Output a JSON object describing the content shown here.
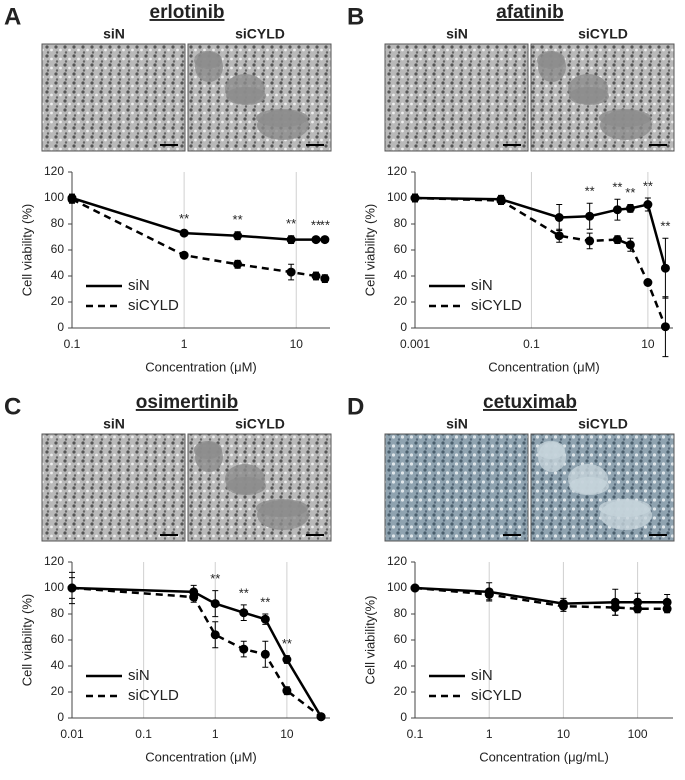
{
  "chart_data": [
    {
      "type": "line",
      "panel": "A",
      "title": "erlotinib",
      "image_labels": [
        "siN",
        "siCYLD"
      ],
      "xscale": "log",
      "grid": "x",
      "legend": "lower left",
      "x_label": "Concentration (μM)",
      "y_label": "Cell viability (%)",
      "xlim": [
        0.1,
        20
      ],
      "xticks": [
        0.1,
        1,
        10
      ],
      "ylim": [
        0,
        120
      ],
      "yticks": [
        0,
        20,
        40,
        60,
        80,
        100,
        120
      ],
      "x": [
        0.1,
        1,
        3,
        9,
        15,
        18
      ],
      "series": [
        {
          "name": "siN",
          "style": "solid",
          "color": "#000000",
          "values": [
            100,
            73,
            71,
            68,
            68,
            68
          ],
          "errors": [
            3,
            2,
            3,
            3,
            2,
            2
          ]
        },
        {
          "name": "siCYLD",
          "style": "dashed",
          "color": "#000000",
          "values": [
            99,
            56,
            49,
            43,
            40,
            38
          ],
          "errors": [
            3,
            2,
            3,
            6,
            3,
            3
          ]
        }
      ],
      "annotations": [
        {
          "text": "**",
          "x": 1
        },
        {
          "text": "**",
          "x": 3
        },
        {
          "text": "**",
          "x": 9
        },
        {
          "text": "**",
          "x": 15
        },
        {
          "text": "**",
          "x": 18
        }
      ]
    },
    {
      "type": "line",
      "panel": "B",
      "title": "afatinib",
      "image_labels": [
        "siN",
        "siCYLD"
      ],
      "xscale": "log",
      "grid": "x",
      "legend": "lower left",
      "x_label": "Concentration (μM)",
      "y_label": "Cell viability (%)",
      "xlim": [
        0.001,
        27
      ],
      "xticks": [
        0.001,
        0.1,
        10
      ],
      "ylim": [
        0,
        120
      ],
      "yticks": [
        0,
        20,
        40,
        60,
        80,
        100,
        120
      ],
      "x": [
        0.001,
        0.03,
        0.3,
        1,
        3,
        5,
        10,
        20
      ],
      "series": [
        {
          "name": "siN",
          "style": "solid",
          "color": "#000000",
          "values": [
            100,
            99,
            85,
            86,
            91,
            92,
            95,
            46
          ],
          "errors": [
            3,
            3,
            10,
            10,
            8,
            3,
            5,
            23
          ]
        },
        {
          "name": "siCYLD",
          "style": "dashed",
          "color": "#000000",
          "values": [
            100,
            98,
            71,
            67,
            68,
            64,
            35,
            1
          ],
          "errors": [
            3,
            3,
            5,
            6,
            3,
            5,
            2,
            23
          ]
        }
      ],
      "annotations": [
        {
          "text": "**",
          "x": 1
        },
        {
          "text": "**",
          "x": 3
        },
        {
          "text": "**",
          "x": 5
        },
        {
          "text": "**",
          "x": 10
        },
        {
          "text": "**",
          "x": 20
        }
      ]
    },
    {
      "type": "line",
      "panel": "C",
      "title": "osimertinib",
      "image_labels": [
        "siN",
        "siCYLD"
      ],
      "xscale": "log",
      "grid": "x",
      "legend": "lower left",
      "x_label": "Concentration (μM)",
      "y_label": "Cell viability (%)",
      "xlim": [
        0.01,
        40
      ],
      "xticks": [
        0.01,
        0.1,
        1,
        10
      ],
      "ylim": [
        0,
        120
      ],
      "yticks": [
        0,
        20,
        40,
        60,
        80,
        100,
        120
      ],
      "x": [
        0.01,
        0.5,
        1,
        2.5,
        5,
        10,
        30
      ],
      "series": [
        {
          "name": "siN",
          "style": "solid",
          "color": "#000000",
          "values": [
            100,
            97,
            88,
            81,
            76,
            45,
            1
          ],
          "errors": [
            12,
            5,
            10,
            6,
            4,
            3,
            2
          ]
        },
        {
          "name": "siCYLD",
          "style": "dashed",
          "color": "#000000",
          "values": [
            100,
            93,
            64,
            53,
            49,
            21,
            1
          ],
          "errors": [
            8,
            4,
            10,
            6,
            10,
            3,
            2
          ]
        }
      ],
      "annotations": [
        {
          "text": "**",
          "x": 1
        },
        {
          "text": "**",
          "x": 2.5
        },
        {
          "text": "**",
          "x": 5
        },
        {
          "text": "**",
          "x": 10
        }
      ]
    },
    {
      "type": "line",
      "panel": "D",
      "title": "cetuximab",
      "image_labels": [
        "siN",
        "siCYLD"
      ],
      "xscale": "log",
      "grid": "x",
      "legend": "lower left",
      "x_label": "Concentration (μg/mL)",
      "y_label": "Cell viability(%)",
      "xlim": [
        0.1,
        300
      ],
      "xticks": [
        0.1,
        1,
        10,
        100
      ],
      "ylim": [
        0,
        120
      ],
      "yticks": [
        0,
        20,
        40,
        60,
        80,
        100,
        120
      ],
      "x": [
        0.1,
        1,
        10,
        50,
        100,
        250
      ],
      "series": [
        {
          "name": "siN",
          "style": "solid",
          "color": "#000000",
          "values": [
            100,
            97,
            88,
            89,
            89,
            89
          ],
          "errors": [
            2,
            7,
            4,
            10,
            7,
            6
          ]
        },
        {
          "name": "siCYLD",
          "style": "dashed",
          "color": "#000000",
          "values": [
            100,
            95,
            86,
            85,
            84,
            84
          ],
          "errors": [
            2,
            4,
            4,
            6,
            3,
            3
          ]
        }
      ],
      "annotations": []
    }
  ]
}
